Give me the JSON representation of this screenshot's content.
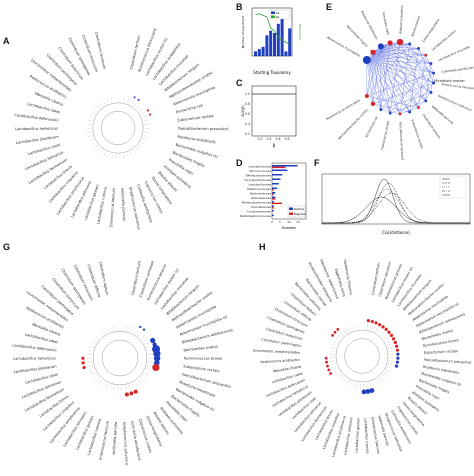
{
  "figure": {
    "panel_labels": {
      "A": "A",
      "B": "B",
      "C": "C",
      "D": "D",
      "E": "E",
      "F": "F",
      "G": "G",
      "H": "H"
    }
  },
  "panelA": {
    "labels": [
      "Clostridium tertium",
      "Ruminococcus bicirculans",
      "Lactobacillus reuteri (s)",
      "Lactobacillus acidophilus",
      "Lactobacillus mucosae",
      "Bifidobacterium longum",
      "Methanobrevibacter smithii",
      "Akkermansia muciniphila",
      "Escherichia coli",
      "Eubacterium rectale",
      "Faecalibacterium prausnitzii",
      "Roseburia intestinalis",
      "Bacteroides vulgatus (s)",
      "Bacteroides fragilis",
      "Prevotella copri",
      "Alistipes putredinis",
      "Blautia obeum",
      "Dorea longicatena",
      "Coprococcus comes",
      "Collinsella aerofaciens",
      "Streptococcus salivarius",
      "Veillonella parvula",
      "Enterococcus faecium",
      "Lactobacillus ruminis",
      "Lactobacillus gasseri",
      "Lactobacillus johnsonii",
      "Lactobacillus amylovorus",
      "Lactobacillus crispatus",
      "Lactobacillus brevis",
      "Lactobacillus fermentum",
      "Lactobacillus salivarius",
      "Lactobacillus casei",
      "Lactobacillus plantarum",
      "Lactobacillus helveticus",
      "Lactobacillus delbrueckii",
      "Lactobacillus sakei",
      "Weissella cibaria",
      "Pediococcus acidilactici",
      "Leuconostoc mesenteroides",
      "Clostridium perfringens",
      "Clostridium butyricum",
      "Clostridium sporogenes",
      "Clostridium innocuum",
      "Clostridium ramosum"
    ]
  },
  "panelB": {
    "xlabel": "Starting Taxonomy",
    "ylabel_left": "Number of significant",
    "ylabel_right": "Proportion",
    "legend": [
      "LR",
      "KC"
    ]
  },
  "panelC": {
    "xlabel": "β",
    "ylabel": "AUC(β)"
  },
  "panelD": {
    "categories": [
      "Lactobacillaceae",
      "Micrococcaceae",
      "Bifidobacteriaceae",
      "Corynebacteriaceae",
      "Lactobacillaceae",
      "Streptococcaceae",
      "Bacteroidaceae",
      "Veillonellaceae",
      "Methanobacteriaceae",
      "Prevotellaceae",
      "Coriobacteriaceae",
      "Peptostreptococcaceae"
    ],
    "xlabel": "Number",
    "legend": [
      "Positive",
      "Negative"
    ]
  },
  "panelE": {
    "labels": [
      "Akkermansia muciniphila",
      "Bacteroides fragilis",
      "Roseburia intestinalis",
      "Prevotella copri",
      "Alistipes putredinis",
      "Blautia obeum",
      "Dorea longicatena",
      "Lactobacillus reuteri",
      "Lactobacillus mucosae",
      "Collinsella aerofaciens",
      "Enterococcus faecium",
      "Streptococcus salivarius",
      "Veillonella parvula",
      "Clostridium tertium",
      "Eubacterium rectale",
      "Faecalibacterium prausnitzii",
      "Coprococcus comes",
      "Escherichia coli",
      "Methanobrevibacter smithii",
      "Ruminococcus bicirculans"
    ],
    "highlight": "Microbiota marker"
  },
  "panelF": {
    "xlabel": "Cos(distance)"
  },
  "panelG": {
    "labels": [
      "Clostridium tertium",
      "Clostridium ramosum",
      "Ruminococcus gnavus",
      "Lactobacillus reuteri (s)",
      "Lactobacillus mucosae",
      "Bifidobacterium longum",
      "Methanobrevibacter smithii",
      "Akkermansia muciniphila",
      "Akkermansia muciniphila (s)",
      "Bifidobacterium adolescentis",
      "Bacteroides ovatus",
      "Ruminococcus bromii",
      "Eubacterium rectale",
      "Faecalibacterium prausnitzii",
      "Roseburia intestinalis",
      "Bacteroides vulgatus (s)",
      "Bacteroides fragilis",
      "Prevotella copri",
      "Alistipes putredinis",
      "Blautia obeum",
      "Dorea longicatena",
      "Coprococcus comes",
      "Collinsella aerofaciens",
      "Streptococcus salivarius",
      "Veillonella parvula",
      "Enterococcus faecium",
      "Lactobacillus ruminis",
      "Lactobacillus gasseri",
      "Lactobacillus johnsonii",
      "Lactobacillus amylovorus",
      "Lactobacillus crispatus",
      "Lactobacillus brevis",
      "Lactobacillus fermentum",
      "Lactobacillus salivarius",
      "Lactobacillus casei",
      "Lactobacillus plantarum",
      "Lactobacillus helveticus",
      "Lactobacillus delbrueckii",
      "Lactobacillus sakei",
      "Weissella cibaria",
      "Pediococcus acidilactici",
      "Leuconostoc mesenteroides",
      "Clostridium perfringens",
      "Clostridium butyricum",
      "Clostridium sporogenes",
      "Clostridium innocuum",
      "Clostridium difficile",
      "Clostridium leptum"
    ]
  },
  "panelH": {
    "labels": [
      "Clostridium tertium",
      "Clostridium ramosum",
      "Ruminococcus gnavus",
      "Lactobacillus reuteri (s)",
      "Lactobacillus mucosae",
      "Bifidobacterium longum",
      "Methanobrevibacter smithii",
      "Akkermansia muciniphila",
      "Akkermansia muciniphila (s)",
      "Bifidobacterium adolescentis",
      "Bacteroides ovatus",
      "Ruminococcus bromii",
      "Eubacterium rectale",
      "Faecalibacterium prausnitzii",
      "Roseburia intestinalis",
      "Bacteroides vulgatus (s)",
      "Bacteroides fragilis",
      "Prevotella copri",
      "Alistipes putredinis",
      "Blautia obeum",
      "Dorea longicatena",
      "Coprococcus comes",
      "Collinsella aerofaciens",
      "Streptococcus salivarius",
      "Veillonella parvula",
      "Enterococcus faecium",
      "Lactobacillus ruminis",
      "Lactobacillus gasseri",
      "Lactobacillus johnsonii",
      "Lactobacillus amylovorus",
      "Lactobacillus crispatus",
      "Lactobacillus brevis",
      "Lactobacillus fermentum",
      "Lactobacillus salivarius",
      "Lactobacillus casei",
      "Lactobacillus plantarum",
      "Lactobacillus helveticus",
      "Lactobacillus delbrueckii",
      "Lactobacillus sakei",
      "Weissella cibaria",
      "Pediococcus acidilactici",
      "Leuconostoc mesenteroides",
      "Clostridium perfringens",
      "Clostridium butyricum",
      "Clostridium sporogenes",
      "Clostridium innocuum",
      "Clostridium difficile",
      "Clostridium leptum",
      "Bacteroides uniformis",
      "Bacteroides caccae",
      "Parabacteroides distasonis",
      "Odoribacter splanchnicus",
      "Eggerthella lenta",
      "Holdemania filiformis"
    ]
  },
  "colors": {
    "red": "#d62728",
    "blue": "#1f3fbf",
    "green": "#2ca02c"
  }
}
